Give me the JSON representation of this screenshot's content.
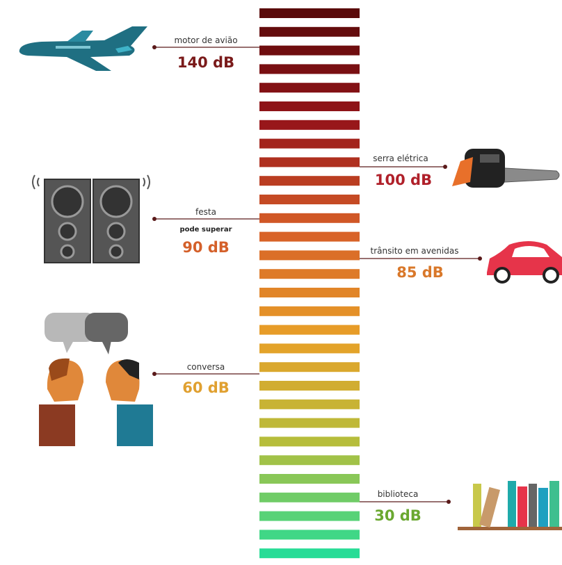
{
  "items": [
    {
      "label": "motor de avião",
      "level": "140 dB"
    },
    {
      "label": "serra elétrica",
      "level": "100 dB"
    },
    {
      "label": "festa",
      "note": "pode superar",
      "level": "90 dB"
    },
    {
      "label": "trânsito em avenidas",
      "level": "85 dB"
    },
    {
      "label": "conversa",
      "level": "60 dB"
    },
    {
      "label": "biblioteca",
      "level": "30 dB"
    }
  ]
}
